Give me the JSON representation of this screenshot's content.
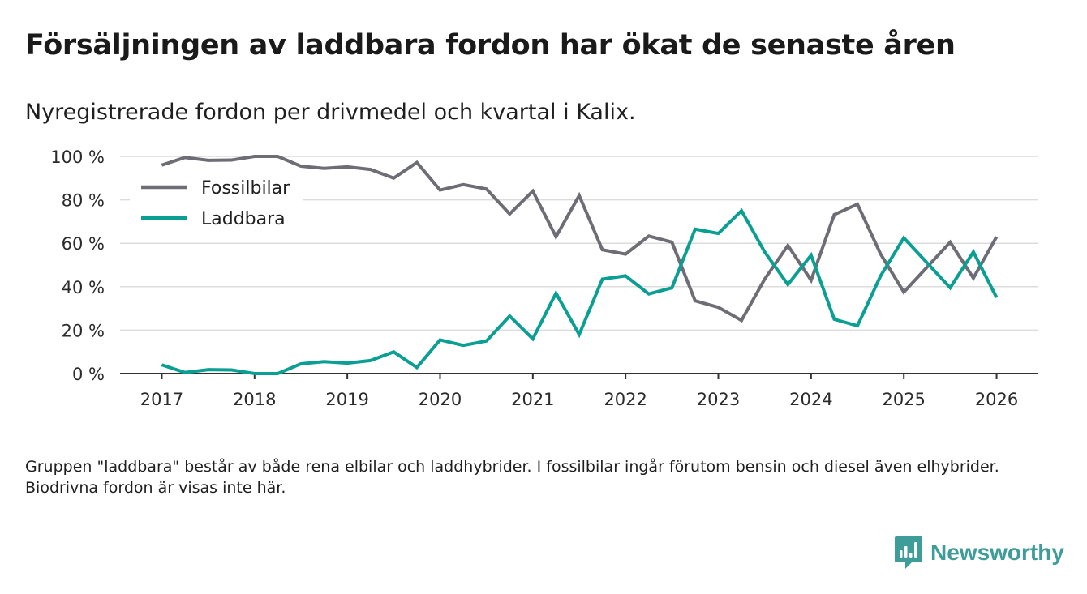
{
  "header": {
    "title": "Försäljningen av laddbara fordon har ökat de senaste åren",
    "subtitle": "Nyregistrerade fordon per drivmedel och kvartal i Kalix."
  },
  "footnote": "Gruppen \"laddbara\" består av både rena elbilar och laddhybrider. I fossilbilar ingår förutom bensin och diesel även elhybrider. Biodrivna fordon är visas inte här.",
  "brand": {
    "name": "Newsworthy",
    "color": "#3e9c99"
  },
  "chart_data": {
    "type": "line",
    "title": "Försäljningen av laddbara fordon har ökat de senaste åren",
    "subtitle": "Nyregistrerade fordon per drivmedel och kvartal i Kalix.",
    "xlabel": "",
    "ylabel": "",
    "x_start": 2017,
    "x_step": 0.25,
    "xlim": [
      2016.55,
      2026.45
    ],
    "xticks": [
      2017,
      2018,
      2019,
      2020,
      2021,
      2022,
      2023,
      2024,
      2025,
      2026
    ],
    "xtick_labels": [
      "2017",
      "2018",
      "2019",
      "2020",
      "2021",
      "2022",
      "2023",
      "2024",
      "2025",
      "2026"
    ],
    "ylim": [
      0,
      100
    ],
    "yticks": [
      0,
      20,
      40,
      60,
      80,
      100
    ],
    "ytick_labels": [
      "0 %",
      "20 %",
      "40 %",
      "60 %",
      "80 %",
      "100 %"
    ],
    "grid": true,
    "legend_position": "top-left",
    "series": [
      {
        "name": "Fossilbilar",
        "color": "#6e6d75",
        "values": [
          96,
          99.5,
          98.2,
          98.3,
          100,
          100,
          95.5,
          94.5,
          95.2,
          94,
          90,
          97.2,
          84.5,
          87,
          85,
          73.5,
          84,
          63,
          82,
          57,
          55,
          63.3,
          60.5,
          33.5,
          30.5,
          24.5,
          43.5,
          59,
          43,
          73.2,
          78,
          55,
          37.5,
          49,
          60.5,
          44,
          63
        ]
      },
      {
        "name": "Laddbara",
        "color": "#0b9f93",
        "values": [
          4,
          0.5,
          1.8,
          1.7,
          0,
          0,
          4.5,
          5.5,
          4.8,
          6,
          10,
          2.8,
          15.5,
          13,
          15,
          26.5,
          16,
          37,
          18,
          43.5,
          45,
          36.7,
          39.5,
          66.5,
          64.5,
          75,
          56,
          41,
          54.5,
          25,
          22,
          45,
          62.5,
          51,
          39.5,
          56,
          35
        ]
      }
    ]
  }
}
